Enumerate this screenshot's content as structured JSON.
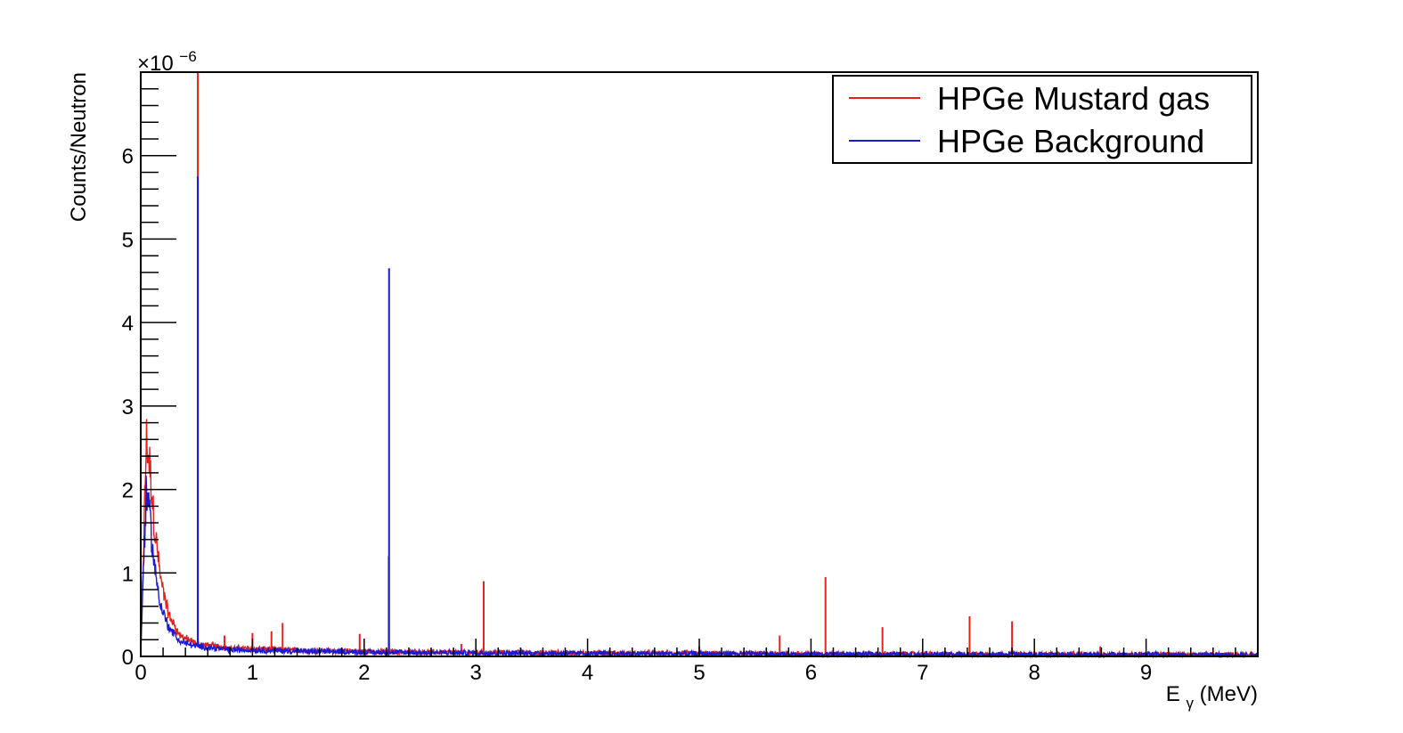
{
  "chart_data": {
    "type": "line",
    "title": "",
    "xlabel": "E",
    "xlabel_subscript": "γ",
    "xlabel_unit": " (MeV)",
    "ylabel": "Counts/Neutron",
    "y_multiplier": {
      "base": "×10",
      "exponent": "−6"
    },
    "xlim": [
      0,
      10
    ],
    "ylim": [
      0,
      7
    ],
    "x_ticks": [
      0,
      1,
      2,
      3,
      4,
      5,
      6,
      7,
      8,
      9
    ],
    "y_ticks": [
      0,
      1,
      2,
      3,
      4,
      5,
      6
    ],
    "grid": false,
    "legend_position": "top-right",
    "series": [
      {
        "name": "HPGe Mustard gas",
        "color": "#e8201c",
        "continuum": [
          [
            0,
            0
          ],
          [
            0.02,
            1.0
          ],
          [
            0.05,
            2.6
          ],
          [
            0.08,
            2.3
          ],
          [
            0.12,
            1.6
          ],
          [
            0.18,
            0.9
          ],
          [
            0.25,
            0.5
          ],
          [
            0.35,
            0.25
          ],
          [
            0.5,
            0.15
          ],
          [
            0.8,
            0.1
          ],
          [
            1.5,
            0.07
          ],
          [
            2.5,
            0.05
          ],
          [
            4,
            0.04
          ],
          [
            6,
            0.03
          ],
          [
            8,
            0.025
          ],
          [
            10,
            0.02
          ]
        ],
        "peaks": [
          [
            0.511,
            7.0
          ],
          [
            0.75,
            0.25
          ],
          [
            1.0,
            0.28
          ],
          [
            1.17,
            0.3
          ],
          [
            1.27,
            0.4
          ],
          [
            1.96,
            0.27
          ],
          [
            2.22,
            1.2
          ],
          [
            2.87,
            0.15
          ],
          [
            3.07,
            0.9
          ],
          [
            5.0,
            0.12
          ],
          [
            5.72,
            0.25
          ],
          [
            6.13,
            0.95
          ],
          [
            6.64,
            0.35
          ],
          [
            7.42,
            0.48
          ],
          [
            7.8,
            0.42
          ],
          [
            8.59,
            0.12
          ]
        ]
      },
      {
        "name": "HPGe Background",
        "color": "#1a1ad6",
        "continuum": [
          [
            0,
            0
          ],
          [
            0.02,
            0.9
          ],
          [
            0.05,
            2.0
          ],
          [
            0.08,
            1.7
          ],
          [
            0.12,
            1.1
          ],
          [
            0.18,
            0.6
          ],
          [
            0.25,
            0.35
          ],
          [
            0.35,
            0.18
          ],
          [
            0.5,
            0.12
          ],
          [
            0.8,
            0.08
          ],
          [
            1.5,
            0.06
          ],
          [
            2.5,
            0.045
          ],
          [
            4,
            0.035
          ],
          [
            6,
            0.028
          ],
          [
            8,
            0.022
          ],
          [
            10,
            0.018
          ]
        ],
        "peaks": [
          [
            0.511,
            5.75
          ],
          [
            2.223,
            4.65
          ]
        ]
      }
    ]
  }
}
